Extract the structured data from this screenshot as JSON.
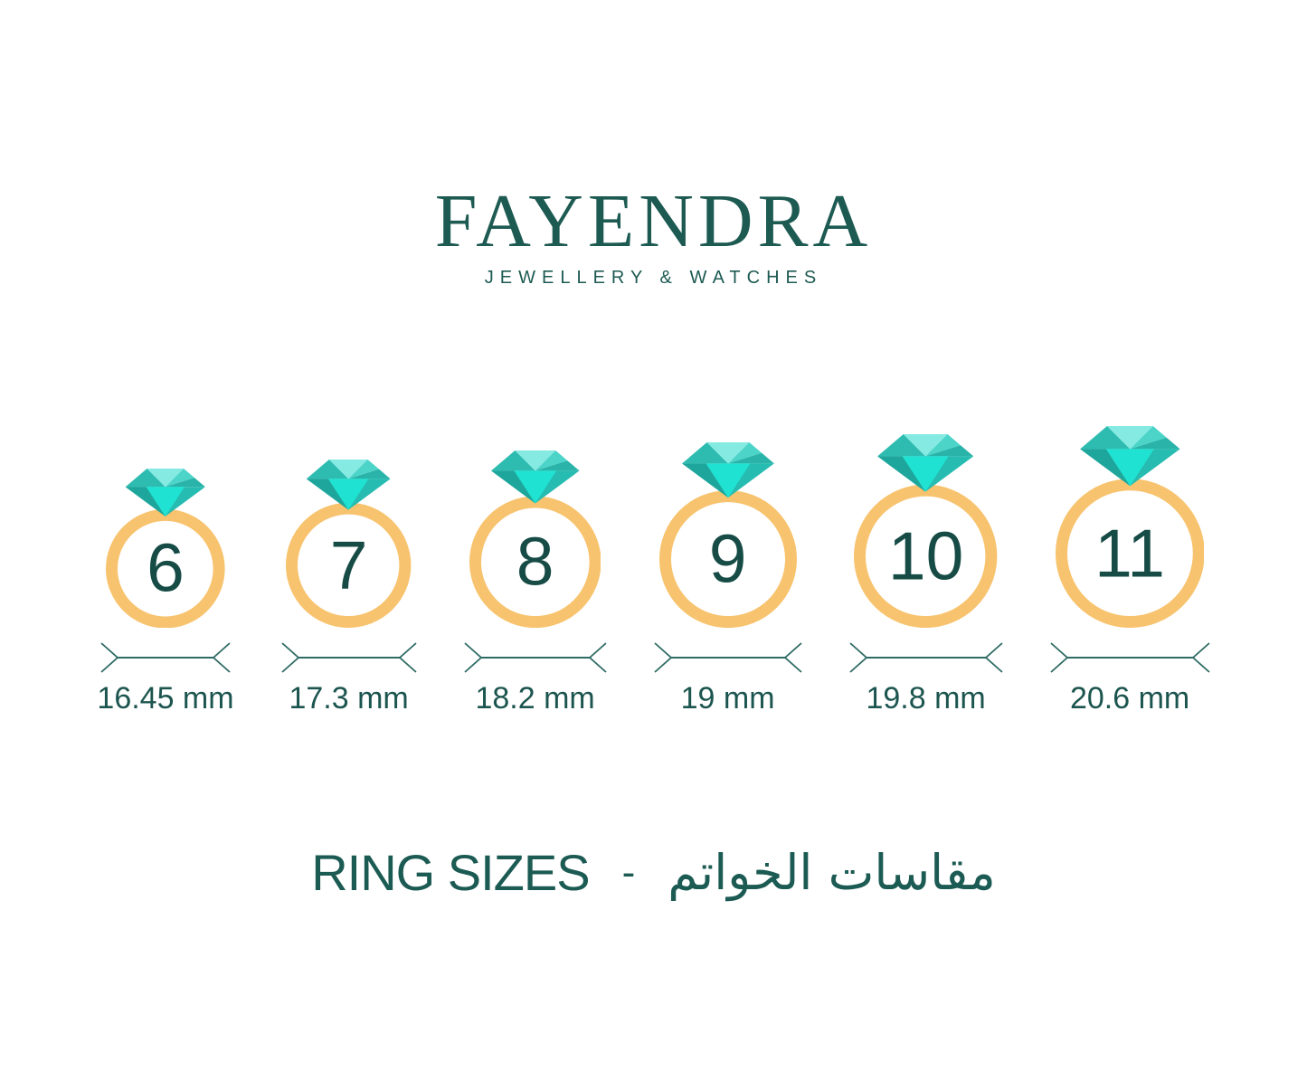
{
  "brand": {
    "name": "FAYENDRA",
    "tagline": "JEWELLERY & WATCHES"
  },
  "title": {
    "en": "RING SIZES",
    "separator": "-",
    "ar": "مقاسات الخواتم"
  },
  "rings": [
    {
      "size": "6",
      "diameter_mm": 16.45,
      "diameter_label": "16.45 mm"
    },
    {
      "size": "7",
      "diameter_mm": 17.3,
      "diameter_label": "17.3 mm"
    },
    {
      "size": "8",
      "diameter_mm": 18.2,
      "diameter_label": "18.2 mm"
    },
    {
      "size": "9",
      "diameter_mm": 19,
      "diameter_label": "19 mm"
    },
    {
      "size": "10",
      "diameter_mm": 19.8,
      "diameter_label": "19.8 mm"
    },
    {
      "size": "11",
      "diameter_mm": 20.6,
      "diameter_label": "20.6 mm"
    }
  ],
  "colors": {
    "background": "#FFFFFF",
    "brand_teal": "#1D5A52",
    "number_teal": "#174C46",
    "label_teal": "#1C554F",
    "measure_line": "#2E6B64",
    "band_orange": "#F8C36E",
    "diamond_crown_left": "#2EBCB1",
    "diamond_crown_center_light": "#84EAE2",
    "diamond_crown_right": "#4CD4C9",
    "diamond_crown_far_right": "#2AB3A9",
    "diamond_pavilion_side": "#27BCB1",
    "diamond_pavilion_left_dark": "#1FA69C",
    "diamond_pavilion_center_bright": "#1FE2D2"
  }
}
